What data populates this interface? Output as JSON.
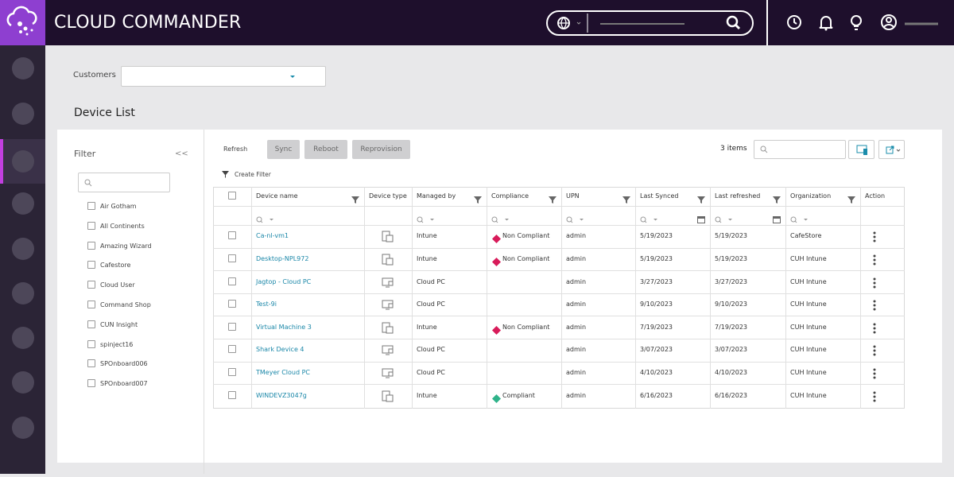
{
  "header": {
    "title": "CLOUD COMMANDER"
  },
  "customers": {
    "label": "Customers"
  },
  "section_title": "Device List",
  "filter": {
    "title": "Filter",
    "collapse": "<<",
    "options": [
      "Air Gotham",
      "All Continents",
      "Amazing Wizard",
      "Cafestore",
      "Cloud User",
      "Command Shop",
      "CUN Insight",
      "spinject16",
      "SPOnboard006",
      "SPOnboard007"
    ]
  },
  "toolbar": {
    "refresh": "Refresh",
    "buttons": [
      "Sync",
      "Reboot",
      "Reprovision"
    ],
    "items": "3 items",
    "create_filter": "Create Filter"
  },
  "table": {
    "columns": [
      "Device name",
      "Device type",
      "Managed by",
      "Compliance",
      "UPN",
      "Last Synced",
      "Last refreshed",
      "Organization",
      "Action"
    ],
    "rows": [
      {
        "name": "Ca-nl-vm1",
        "icon": "mobile",
        "managed_by": "Intune",
        "compliance": {
          "label": "Non Compliant",
          "color": "#d81b5a"
        },
        "upn": "admin",
        "last_synced": "5/19/2023",
        "last_refreshed": "5/19/2023",
        "organization": "CafeStore"
      },
      {
        "name": "Desktop-NPL972",
        "icon": "mobile",
        "managed_by": "Intune",
        "compliance": {
          "label": "Non Compliant",
          "color": "#d81b5a"
        },
        "upn": "admin",
        "last_synced": "5/19/2023",
        "last_refreshed": "5/19/2023",
        "organization": "CUH Intune"
      },
      {
        "name": "Jagtop - Cloud PC",
        "icon": "desktop",
        "managed_by": "Cloud PC",
        "compliance": null,
        "upn": "admin",
        "last_synced": "3/27/2023",
        "last_refreshed": "3/27/2023",
        "organization": "CUH Intune"
      },
      {
        "name": "Test-9i",
        "icon": "desktop",
        "managed_by": "Cloud PC",
        "compliance": null,
        "upn": "admin",
        "last_synced": "9/10/2023",
        "last_refreshed": "9/10/2023",
        "organization": "CUH Intune"
      },
      {
        "name": "Virtual Machine 3",
        "icon": "mobile",
        "managed_by": "Intune",
        "compliance": {
          "label": "Non Compliant",
          "color": "#d81b5a"
        },
        "upn": "admin",
        "last_synced": "7/19/2023",
        "last_refreshed": "7/19/2023",
        "organization": "CUH Intune"
      },
      {
        "name": "Shark Device 4",
        "icon": "desktop",
        "managed_by": "Cloud PC",
        "compliance": null,
        "upn": "admin",
        "last_synced": "3/07/2023",
        "last_refreshed": "3/07/2023",
        "organization": "CUH Intune"
      },
      {
        "name": "TMeyer Cloud PC",
        "icon": "desktop",
        "managed_by": "Cloud PC",
        "compliance": null,
        "upn": "admin",
        "last_synced": "4/10/2023",
        "last_refreshed": "4/10/2023",
        "organization": "CUH Intune"
      },
      {
        "name": "WINDEVZ3047g",
        "icon": "mobile",
        "managed_by": "Intune",
        "compliance": {
          "label": "Compliant",
          "color": "#2fb38a"
        },
        "upn": "admin",
        "last_synced": "6/16/2023",
        "last_refreshed": "6/16/2023",
        "organization": "CUH Intune"
      }
    ]
  }
}
